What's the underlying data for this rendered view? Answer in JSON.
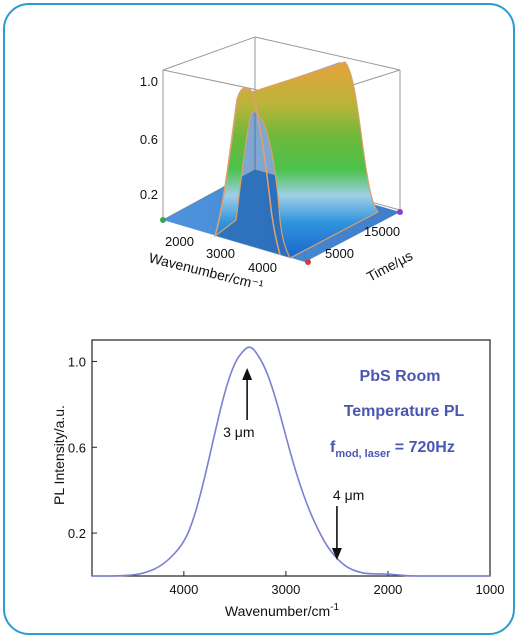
{
  "chart_data": [
    {
      "type": "surface",
      "title": "",
      "xlabel": "Wavenumber/cm⁻¹",
      "ylabel": "Time/µs",
      "zlabel": "",
      "x_ticks": [
        "2000",
        "3000",
        "4000"
      ],
      "y_ticks": [
        "5000",
        "15000"
      ],
      "z_ticks": [
        "1.0",
        "0.6",
        "0.2"
      ],
      "xlim": [
        1500,
        4500
      ],
      "ylim": [
        0,
        20000
      ],
      "zlim": [
        0,
        1.1
      ],
      "peak_center_wavenumber": 3300,
      "peak_height": 1.05
    },
    {
      "type": "line",
      "title": "",
      "xlabel": "Wavenumber/cm",
      "xlabel_sup": "-1",
      "ylabel": "PL Intensity/a.u.",
      "xlim": [
        4900,
        1000
      ],
      "ylim": [
        0,
        1.1
      ],
      "x_ticks": [
        "4000",
        "3000",
        "2000",
        "1000"
      ],
      "y_ticks": [
        "1.0",
        "0.6",
        "0.2"
      ],
      "series": [
        {
          "x": [
            4900,
            4600,
            4400,
            4200,
            4000,
            3900,
            3800,
            3700,
            3600,
            3500,
            3400,
            3350,
            3300,
            3200,
            3100,
            3000,
            2900,
            2800,
            2700,
            2600,
            2500,
            2400,
            2300,
            2200,
            2000,
            1800,
            1600,
            1400,
            1200,
            1000
          ],
          "y": [
            0.0,
            0.0,
            0.01,
            0.05,
            0.15,
            0.27,
            0.45,
            0.66,
            0.86,
            1.0,
            1.06,
            1.07,
            1.05,
            0.97,
            0.83,
            0.65,
            0.48,
            0.34,
            0.23,
            0.14,
            0.08,
            0.04,
            0.02,
            0.01,
            0.01,
            0.0,
            0.0,
            0.0,
            0.0,
            0.0
          ]
        }
      ],
      "annotations": {
        "arrow_3um": {
          "label": "3 μm",
          "x": 3380
        },
        "arrow_4um": {
          "label": "4 μm",
          "x": 2500
        },
        "note_line1": "PbS Room",
        "note_line2": "Temperature PL",
        "note_f": "f",
        "note_f_sub": "mod, laser",
        "note_f_value": " = 720Hz"
      }
    }
  ],
  "colors": {
    "frame": "#2e9bd1",
    "curve": "#7b7fd0",
    "annotation": "#4a56b4"
  }
}
